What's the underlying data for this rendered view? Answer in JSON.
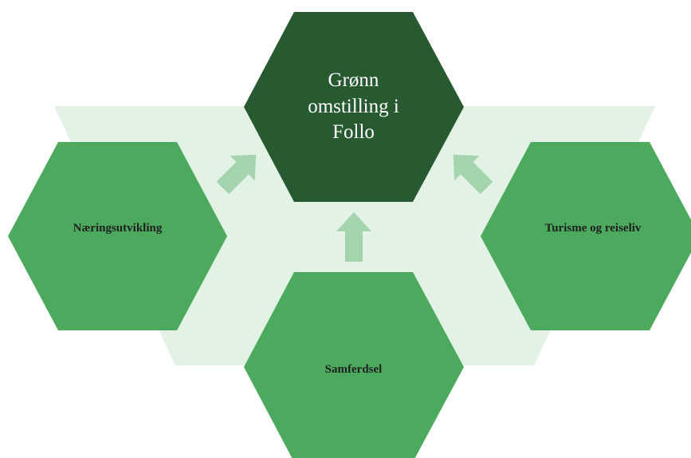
{
  "center": {
    "lines": [
      "Grønn",
      "omstilling i",
      "Follo"
    ]
  },
  "nodes": {
    "left": {
      "label": "Næringsutvikling"
    },
    "right": {
      "label": "Turisme og reiseliv"
    },
    "bottom": {
      "label": "Samferdsel"
    }
  },
  "colors": {
    "background_band": "#e2f2e5",
    "arrow": "#a3d4ae",
    "outer_hex": "#4caa5e",
    "center_hex": "#275a31",
    "center_text": "#ffffff",
    "outer_text": "#1f1f1f"
  }
}
